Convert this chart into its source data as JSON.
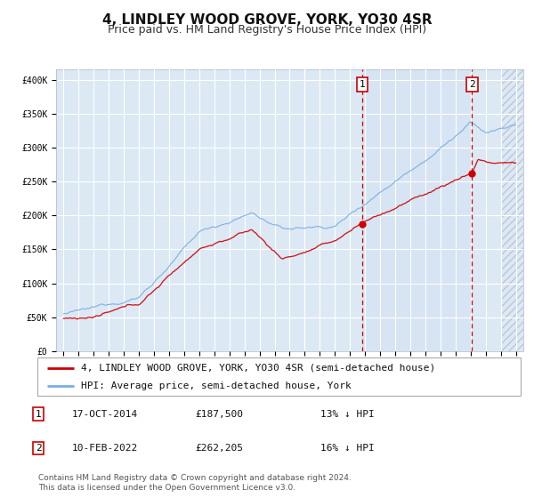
{
  "title": "4, LINDLEY WOOD GROVE, YORK, YO30 4SR",
  "subtitle": "Price paid vs. HM Land Registry's House Price Index (HPI)",
  "legend_line1": "4, LINDLEY WOOD GROVE, YORK, YO30 4SR (semi-detached house)",
  "legend_line2": "HPI: Average price, semi-detached house, York",
  "annotation1_date": "17-OCT-2014",
  "annotation1_price": "£187,500",
  "annotation1_hpi": "13% ↓ HPI",
  "annotation1_year": 2014.8,
  "annotation1_value": 187500,
  "annotation2_date": "10-FEB-2022",
  "annotation2_price": "£262,205",
  "annotation2_hpi": "16% ↓ HPI",
  "annotation2_year": 2022.1,
  "annotation2_value": 262205,
  "y_ticks": [
    0,
    50000,
    100000,
    150000,
    200000,
    250000,
    300000,
    350000,
    400000
  ],
  "background_color": "#ffffff",
  "plot_bg_color": "#dce9f5",
  "grid_color": "#ffffff",
  "line1_color": "#cc0000",
  "line2_color": "#7aade0",
  "vline_color": "#cc0000",
  "footer_text": "Contains HM Land Registry data © Crown copyright and database right 2024.\nThis data is licensed under the Open Government Licence v3.0.",
  "title_fontsize": 11,
  "subtitle_fontsize": 9,
  "tick_fontsize": 7,
  "legend_fontsize": 8,
  "footer_fontsize": 6.5
}
